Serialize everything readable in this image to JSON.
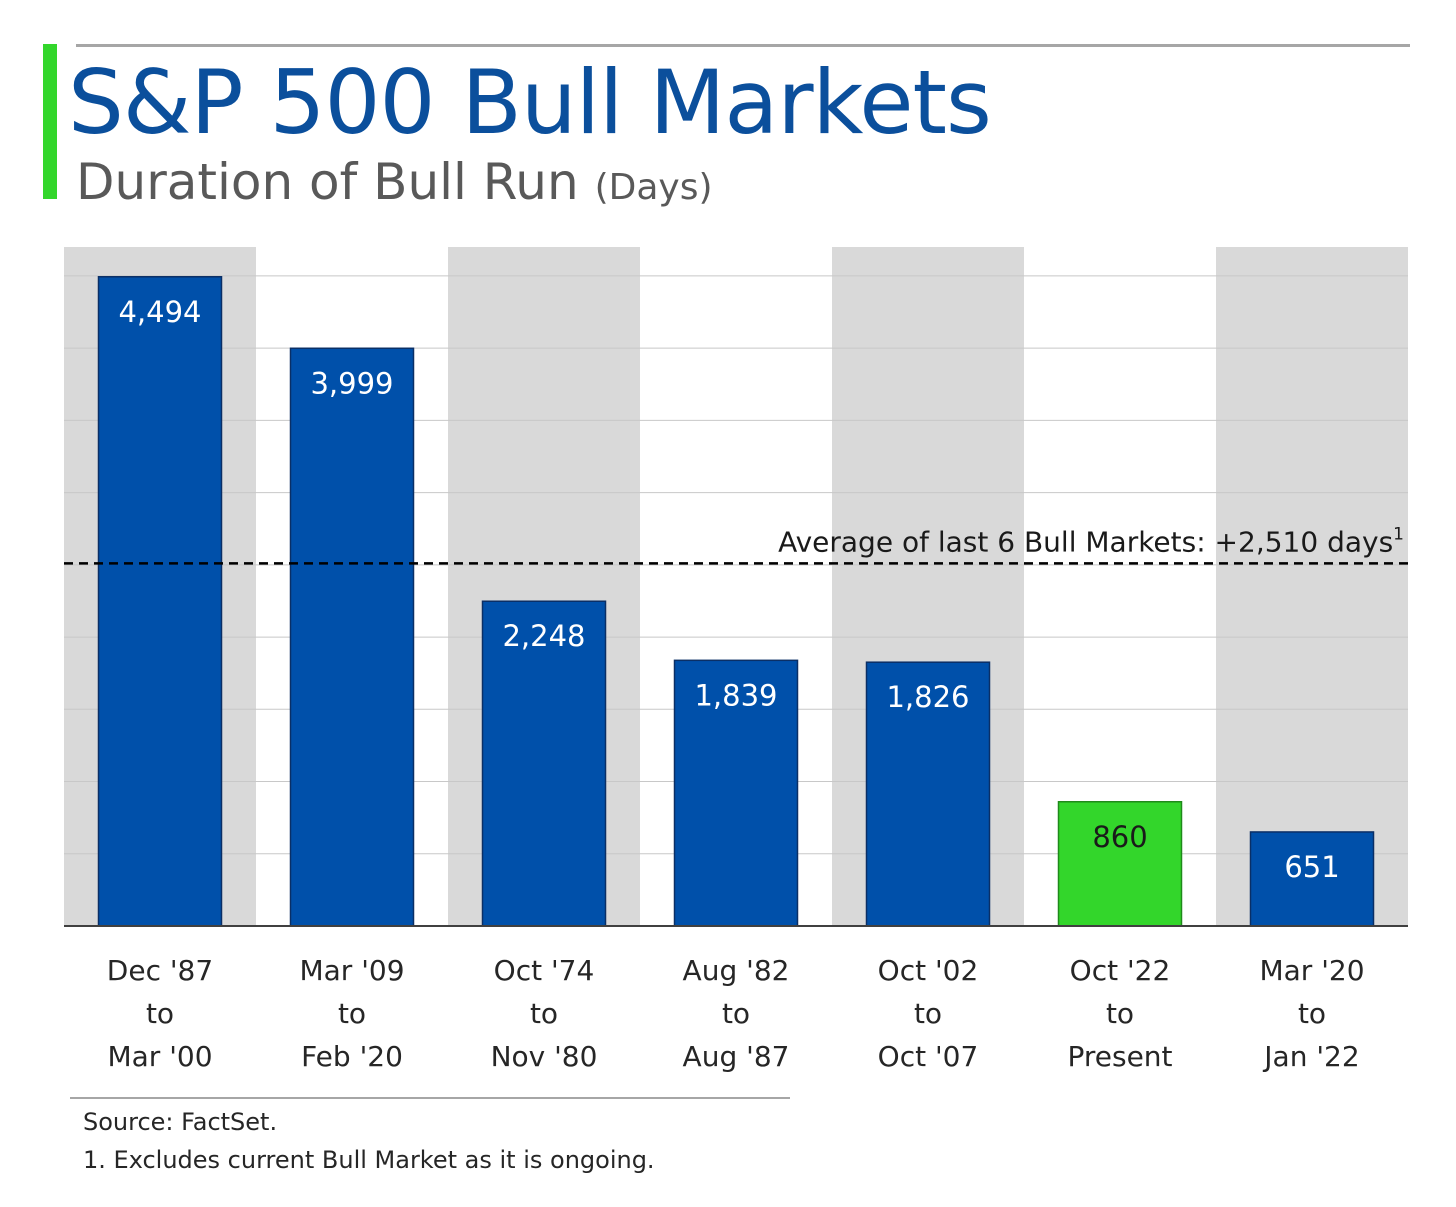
{
  "title": "S&P 500 Bull Markets",
  "subtitle": "Duration of Bull Run",
  "subtitle_unit": "(Days)",
  "colors": {
    "title": "#0b4f9c",
    "accent": "#33d62b",
    "bar": "#0050aa",
    "bar_current": "#33d62b",
    "band": "#d9d9d9",
    "gridline": "#c8c8c8",
    "subtitle": "#595959"
  },
  "chart_data": {
    "type": "bar",
    "categories": [
      [
        "Dec '87",
        "to",
        "Mar '00"
      ],
      [
        "Mar '09",
        "to",
        "Feb '20"
      ],
      [
        "Oct '74",
        "to",
        "Nov '80"
      ],
      [
        "Aug '82",
        "to",
        "Aug '87"
      ],
      [
        "Oct '02",
        "to",
        "Oct '07"
      ],
      [
        "Oct '22",
        "to",
        "Present"
      ],
      [
        "Mar '20",
        "to",
        "Jan '22"
      ]
    ],
    "values": [
      4494,
      3999,
      2248,
      1839,
      1826,
      860,
      651
    ],
    "value_labels": [
      "4,494",
      "3,999",
      "2,248",
      "1,839",
      "1,826",
      "860",
      "651"
    ],
    "highlight_index": 5,
    "reference_line": {
      "value": 2510,
      "label": "Average of last 6 Bull Markets: +2,510 days",
      "footnote_mark": "1"
    },
    "ylim": [
      0,
      4700
    ],
    "grid": true,
    "alternating_bands": true
  },
  "notes": {
    "source": "Source: FactSet.",
    "footnote": "1. Excludes current Bull Market as it is ongoing."
  }
}
